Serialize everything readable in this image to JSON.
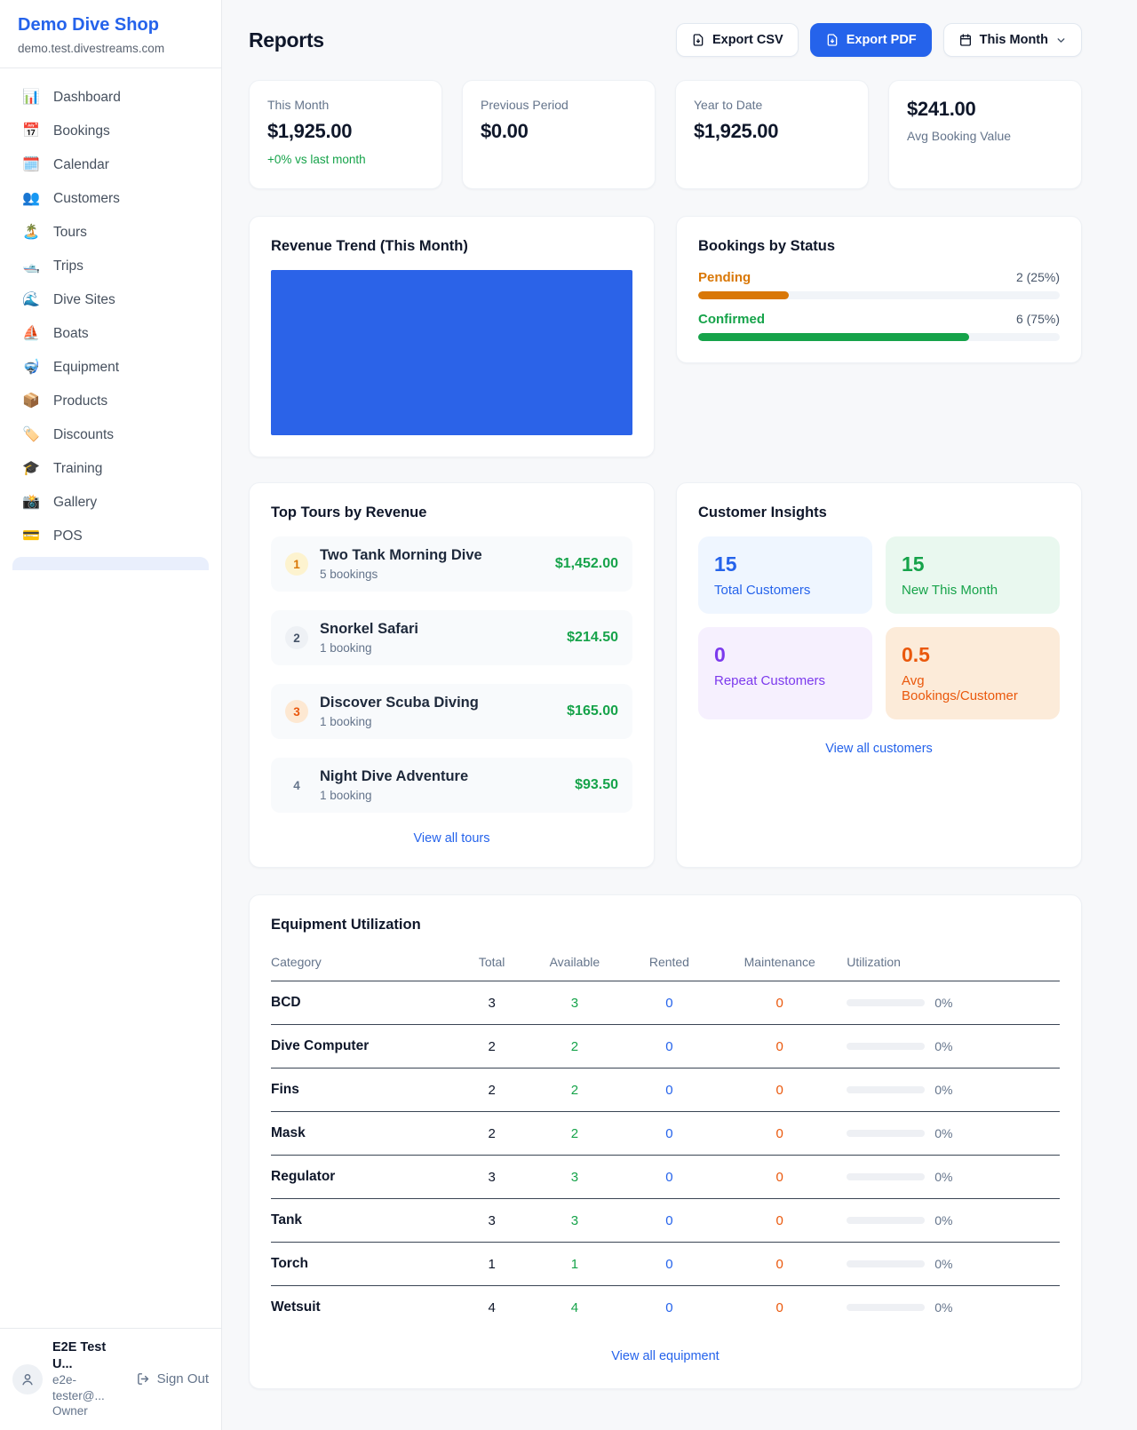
{
  "sidebar": {
    "brand": {
      "name": "Demo Dive Shop",
      "domain": "demo.test.divestreams.com"
    },
    "nav": [
      {
        "label": "Dashboard",
        "icon": "📊"
      },
      {
        "label": "Bookings",
        "icon": "📅"
      },
      {
        "label": "Calendar",
        "icon": "🗓️"
      },
      {
        "label": "Customers",
        "icon": "👥"
      },
      {
        "label": "Tours",
        "icon": "🏝️"
      },
      {
        "label": "Trips",
        "icon": "🛥️"
      },
      {
        "label": "Dive Sites",
        "icon": "🌊"
      },
      {
        "label": "Boats",
        "icon": "⛵"
      },
      {
        "label": "Equipment",
        "icon": "🤿"
      },
      {
        "label": "Products",
        "icon": "📦"
      },
      {
        "label": "Discounts",
        "icon": "🏷️"
      },
      {
        "label": "Training",
        "icon": "🎓"
      },
      {
        "label": "Gallery",
        "icon": "📸"
      },
      {
        "label": "POS",
        "icon": "💳"
      }
    ],
    "user": {
      "name": "E2E Test U...",
      "email": "e2e-tester@...",
      "role": "Owner",
      "sign_out": "Sign Out"
    }
  },
  "header": {
    "title": "Reports",
    "export_csv": "Export CSV",
    "export_pdf": "Export PDF",
    "period": "This Month"
  },
  "stats": {
    "this_month": {
      "label": "This Month",
      "value": "$1,925.00",
      "delta": "+0% vs last month"
    },
    "previous_period": {
      "label": "Previous Period",
      "value": "$0.00"
    },
    "year_to_date": {
      "label": "Year to Date",
      "value": "$1,925.00"
    },
    "avg_booking": {
      "value": "$241.00",
      "label": "Avg Booking Value"
    }
  },
  "revenue_trend": {
    "title": "Revenue Trend (This Month)",
    "bar_color": "#2b63e8"
  },
  "bookings_by_status": {
    "title": "Bookings by Status",
    "rows": [
      {
        "label": "Pending",
        "value": "2 (25%)",
        "percent": 25,
        "color": "#d97706"
      },
      {
        "label": "Confirmed",
        "value": "6 (75%)",
        "percent": 75,
        "color": "#16a34a"
      }
    ]
  },
  "top_tours": {
    "title": "Top Tours by Revenue",
    "rows": [
      {
        "rank": "1",
        "name": "Two Tank Morning Dive",
        "bookings": "5 bookings",
        "revenue": "$1,452.00"
      },
      {
        "rank": "2",
        "name": "Snorkel Safari",
        "bookings": "1 booking",
        "revenue": "$214.50"
      },
      {
        "rank": "3",
        "name": "Discover Scuba Diving",
        "bookings": "1 booking",
        "revenue": "$165.00"
      },
      {
        "rank": "4",
        "name": "Night Dive Adventure",
        "bookings": "1 booking",
        "revenue": "$93.50"
      }
    ],
    "view_all": "View all tours"
  },
  "customer_insights": {
    "title": "Customer Insights",
    "tiles": [
      {
        "value": "15",
        "label": "Total Customers"
      },
      {
        "value": "15",
        "label": "New This Month"
      },
      {
        "value": "0",
        "label": "Repeat Customers"
      },
      {
        "value": "0.5",
        "label": "Avg Bookings/Customer"
      }
    ],
    "view_all": "View all customers"
  },
  "equipment": {
    "title": "Equipment Utilization",
    "columns": {
      "category": "Category",
      "total": "Total",
      "available": "Available",
      "rented": "Rented",
      "maintenance": "Maintenance",
      "utilization": "Utilization"
    },
    "rows": [
      {
        "category": "BCD",
        "total": "3",
        "available": "3",
        "rented": "0",
        "maintenance": "0",
        "utilization": "0%"
      },
      {
        "category": "Dive Computer",
        "total": "2",
        "available": "2",
        "rented": "0",
        "maintenance": "0",
        "utilization": "0%"
      },
      {
        "category": "Fins",
        "total": "2",
        "available": "2",
        "rented": "0",
        "maintenance": "0",
        "utilization": "0%"
      },
      {
        "category": "Mask",
        "total": "2",
        "available": "2",
        "rented": "0",
        "maintenance": "0",
        "utilization": "0%"
      },
      {
        "category": "Regulator",
        "total": "3",
        "available": "3",
        "rented": "0",
        "maintenance": "0",
        "utilization": "0%"
      },
      {
        "category": "Tank",
        "total": "3",
        "available": "3",
        "rented": "0",
        "maintenance": "0",
        "utilization": "0%"
      },
      {
        "category": "Torch",
        "total": "1",
        "available": "1",
        "rented": "0",
        "maintenance": "0",
        "utilization": "0%"
      },
      {
        "category": "Wetsuit",
        "total": "4",
        "available": "4",
        "rented": "0",
        "maintenance": "0",
        "utilization": "0%"
      }
    ],
    "view_all": "View all equipment"
  },
  "colors": {
    "brand_blue": "#2563eb",
    "green": "#16a34a",
    "pending_orange": "#d97706",
    "maintenance_orange": "#ea580c",
    "chart_blue": "#2b63e8"
  }
}
